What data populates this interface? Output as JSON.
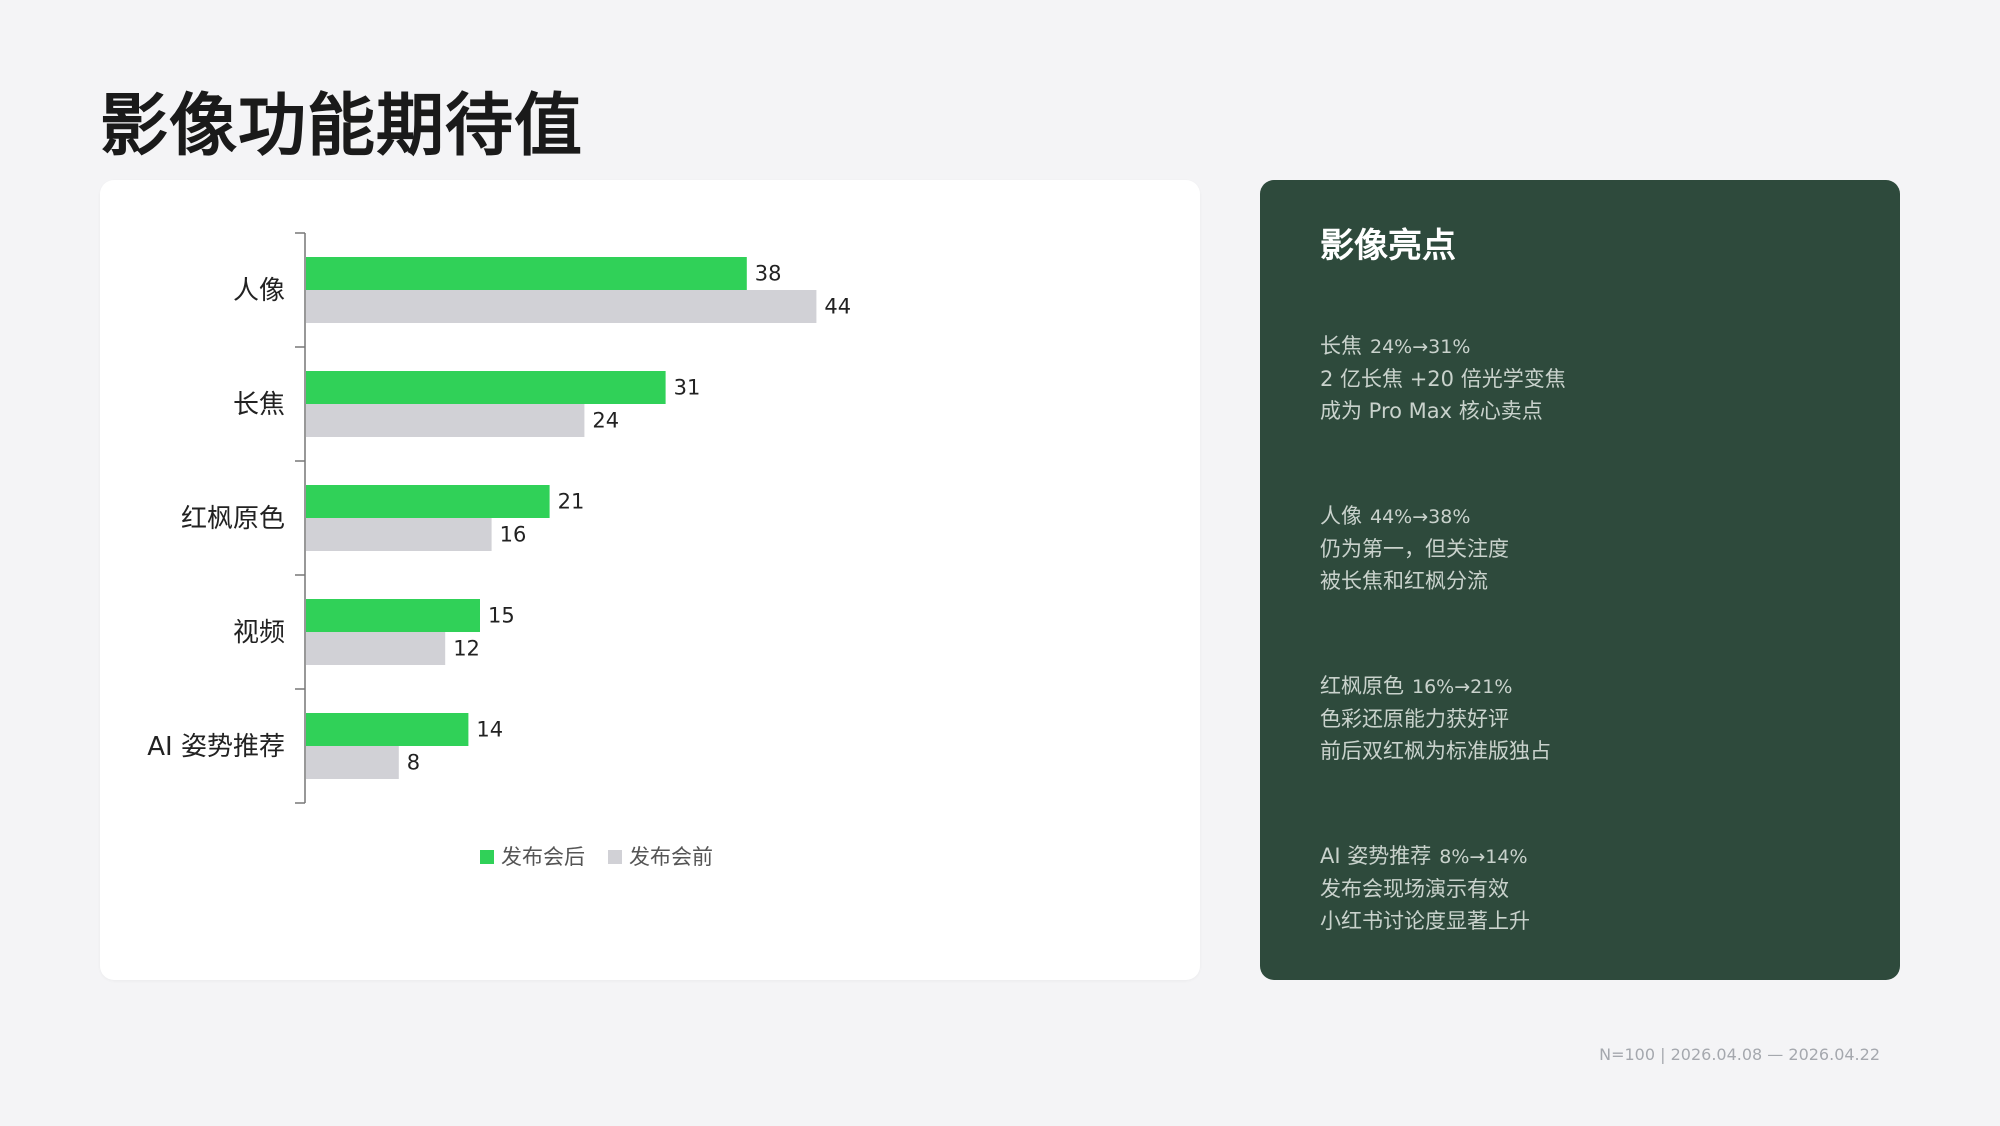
{
  "page": {
    "title": "影像功能期待值",
    "footer": "N=100 | 2026.04.08 — 2026.04.22"
  },
  "chart_data": {
    "type": "bar",
    "orientation": "horizontal",
    "categories": [
      "人像",
      "长焦",
      "红枫原色",
      "视频",
      "AI 姿势推荐"
    ],
    "series": [
      {
        "name": "发布会后",
        "values": [
          38,
          31,
          21,
          15,
          14
        ],
        "color": "#30d158"
      },
      {
        "name": "发布会前",
        "values": [
          44,
          24,
          16,
          12,
          8
        ],
        "color": "#d1d1d6"
      }
    ],
    "xlim": [
      0,
      60
    ],
    "grid": false,
    "legend_position": "bottom-center",
    "data_labels": true
  },
  "panel": {
    "title": "影像亮点",
    "highlights": [
      {
        "name": "长焦",
        "change": "24%→31%",
        "lines": [
          "2 亿长焦 +20 倍光学变焦",
          "成为 Pro Max 核心卖点"
        ]
      },
      {
        "name": "人像",
        "change": "44%→38%",
        "lines": [
          "仍为第一，但关注度",
          "被长焦和红枫分流"
        ]
      },
      {
        "name": "红枫原色",
        "change": "16%→21%",
        "lines": [
          "色彩还原能力获好评",
          "前后双红枫为标准版独占"
        ]
      },
      {
        "name": "AI 姿势推荐",
        "change": "8%→14%",
        "lines": [
          "发布会现场演示有效",
          "小红书讨论度显著上升"
        ]
      }
    ]
  }
}
